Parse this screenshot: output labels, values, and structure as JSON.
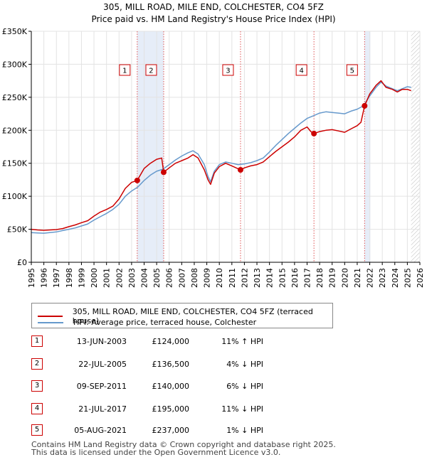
{
  "chart_data": {
    "type": "line",
    "title": "305, MILL ROAD, MILE END, COLCHESTER, CO4 5FZ",
    "subtitle": "Price paid vs. HM Land Registry's House Price Index (HPI)",
    "xlabel": "",
    "ylabel": "",
    "xlim": [
      1995,
      2026
    ],
    "ylim": [
      0,
      350000
    ],
    "grid": true,
    "x_ticks": [
      "1995",
      "1996",
      "1997",
      "1998",
      "1999",
      "2000",
      "2001",
      "2002",
      "2003",
      "2004",
      "2005",
      "2006",
      "2007",
      "2008",
      "2009",
      "2010",
      "2011",
      "2012",
      "2013",
      "2014",
      "2015",
      "2016",
      "2017",
      "2018",
      "2019",
      "2020",
      "2021",
      "2022",
      "2023",
      "2024",
      "2025",
      "2026"
    ],
    "y_ticks": [
      {
        "value": 0,
        "label": "£0"
      },
      {
        "value": 50000,
        "label": "£50K"
      },
      {
        "value": 100000,
        "label": "£100K"
      },
      {
        "value": 150000,
        "label": "£150K"
      },
      {
        "value": 200000,
        "label": "£200K"
      },
      {
        "value": 250000,
        "label": "£250K"
      },
      {
        "value": 300000,
        "label": "£300K"
      },
      {
        "value": 350000,
        "label": "£350K"
      }
    ],
    "series": [
      {
        "name": "305, MILL ROAD, MILE END, COLCHESTER, CO4 5FZ (terraced house)",
        "color": "#cc0000",
        "x": [
          1995,
          1995.5,
          1996,
          1997,
          1997.5,
          1998,
          1998.5,
          1999,
          1999.5,
          2000,
          2000.5,
          2001,
          2001.5,
          2002,
          2002.5,
          2003,
          2003.45,
          2004,
          2004.5,
          2005,
          2005.4,
          2005.56,
          2006,
          2006.5,
          2007,
          2007.5,
          2007.9,
          2008.3,
          2008.8,
          2009.1,
          2009.3,
          2009.6,
          2010,
          2010.5,
          2011,
          2011.69,
          2012,
          2012.5,
          2013,
          2013.5,
          2014,
          2014.5,
          2015,
          2015.5,
          2016,
          2016.5,
          2017,
          2017.3,
          2017.55,
          2018,
          2018.5,
          2019,
          2019.5,
          2020,
          2020.5,
          2021,
          2021.3,
          2021.59,
          2022,
          2022.5,
          2022.9,
          2023.3,
          2023.8,
          2024.2,
          2024.6,
          2025,
          2025.3
        ],
        "y": [
          50000,
          49000,
          48500,
          49500,
          51000,
          54000,
          56500,
          60000,
          63000,
          70000,
          76000,
          80000,
          85000,
          96000,
          112000,
          121000,
          124000,
          142000,
          150000,
          156000,
          158000,
          136500,
          143000,
          150000,
          154000,
          158000,
          163000,
          158000,
          140000,
          125000,
          118000,
          135000,
          145000,
          150000,
          146000,
          140000,
          143000,
          146000,
          148000,
          152000,
          160000,
          168000,
          175000,
          182000,
          190000,
          200000,
          205000,
          198000,
          195000,
          198000,
          200000,
          201000,
          199000,
          197000,
          202000,
          207000,
          212000,
          237000,
          255000,
          268000,
          275000,
          265000,
          262000,
          258000,
          262000,
          262000,
          260000
        ]
      },
      {
        "name": "HPI: Average price, terraced house, Colchester",
        "color": "#6699cc",
        "x": [
          1995,
          1995.5,
          1996,
          1997,
          1997.5,
          1998,
          1998.5,
          1999,
          1999.5,
          2000,
          2000.5,
          2001,
          2001.5,
          2002,
          2002.5,
          2003,
          2003.5,
          2004,
          2004.5,
          2005,
          2005.5,
          2006,
          2006.5,
          2007,
          2007.5,
          2007.9,
          2008.3,
          2008.8,
          2009.1,
          2009.3,
          2009.6,
          2010,
          2010.5,
          2011,
          2011.5,
          2012,
          2012.5,
          2013,
          2013.5,
          2014,
          2014.5,
          2015,
          2015.5,
          2016,
          2016.5,
          2017,
          2017.5,
          2018,
          2018.5,
          2019,
          2019.5,
          2020,
          2020.5,
          2021,
          2021.5,
          2022,
          2022.5,
          2022.9,
          2023.3,
          2023.8,
          2024.2,
          2024.6,
          2025,
          2025.3
        ],
        "y": [
          45000,
          44500,
          44000,
          46000,
          48000,
          50000,
          52000,
          55000,
          58000,
          64000,
          69000,
          74000,
          80000,
          88000,
          100000,
          108000,
          114000,
          124000,
          132000,
          138000,
          141000,
          148000,
          155000,
          161000,
          166000,
          169000,
          164000,
          148000,
          130000,
          122000,
          138000,
          148000,
          152000,
          150000,
          148000,
          149000,
          151000,
          154000,
          158000,
          167000,
          177000,
          186000,
          195000,
          203000,
          211000,
          218000,
          222000,
          226000,
          228000,
          227000,
          226000,
          225000,
          229000,
          232000,
          237000,
          252000,
          265000,
          273000,
          267000,
          263000,
          260000,
          263000,
          266000,
          265000
        ]
      }
    ],
    "sales": [
      {
        "id": "1",
        "x": 2003.45,
        "y": 124000
      },
      {
        "id": "2",
        "x": 2005.56,
        "y": 136500
      },
      {
        "id": "3",
        "x": 2011.69,
        "y": 140000
      },
      {
        "id": "4",
        "x": 2017.55,
        "y": 195000
      },
      {
        "id": "5",
        "x": 2021.59,
        "y": 237000
      }
    ],
    "shaded_periods": [
      [
        2003.45,
        2005.56
      ],
      [
        2021.59,
        2022.05
      ]
    ],
    "hatched_from": 2025.3
  },
  "legend": {
    "property_label": "305, MILL ROAD, MILE END, COLCHESTER, CO4 5FZ (terraced house)",
    "hpi_label": "HPI: Average price, terraced house, Colchester",
    "property_color": "#cc0000",
    "hpi_color": "#6699cc"
  },
  "transactions": [
    {
      "num": "1",
      "date": "13-JUN-2003",
      "price": "£124,000",
      "hpi": "11% ↑ HPI"
    },
    {
      "num": "2",
      "date": "22-JUL-2005",
      "price": "£136,500",
      "hpi": "4% ↓ HPI"
    },
    {
      "num": "3",
      "date": "09-SEP-2011",
      "price": "£140,000",
      "hpi": "6% ↓ HPI"
    },
    {
      "num": "4",
      "date": "21-JUL-2017",
      "price": "£195,000",
      "hpi": "11% ↓ HPI"
    },
    {
      "num": "5",
      "date": "05-AUG-2021",
      "price": "£237,000",
      "hpi": "1% ↓ HPI"
    }
  ],
  "footer": {
    "line1": "Contains HM Land Registry data © Crown copyright and database right 2025.",
    "line2": "This data is licensed under the Open Government Licence v3.0."
  }
}
